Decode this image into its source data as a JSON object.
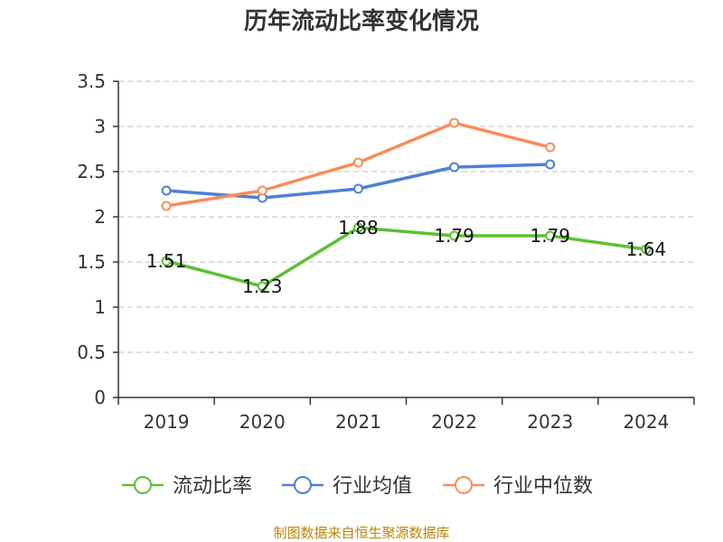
{
  "chart_data": {
    "type": "line",
    "title": "历年流动比率变化情况",
    "categories": [
      "2019",
      "2020",
      "2021",
      "2022",
      "2023",
      "2024"
    ],
    "ylim": [
      0,
      3.5
    ],
    "yticks": [
      "0",
      "0.5",
      "1",
      "1.5",
      "2",
      "2.5",
      "3",
      "3.5"
    ],
    "grid": true,
    "legend_position": "bottom",
    "series": [
      {
        "name": "流动比率",
        "color": "#5bc132",
        "values": [
          1.51,
          1.23,
          1.88,
          1.79,
          1.79,
          1.64
        ],
        "labels": [
          "1.51",
          "1.23",
          "1.88",
          "1.79",
          "1.79",
          "1.64"
        ]
      },
      {
        "name": "行业均值",
        "color": "#4f7fd6",
        "values": [
          2.29,
          2.21,
          2.31,
          2.55,
          2.58,
          null
        ]
      },
      {
        "name": "行业中位数",
        "color": "#f98c5a",
        "values": [
          2.12,
          2.29,
          2.6,
          3.04,
          2.77,
          null
        ]
      }
    ],
    "source": "制图数据来自恒生聚源数据库"
  }
}
